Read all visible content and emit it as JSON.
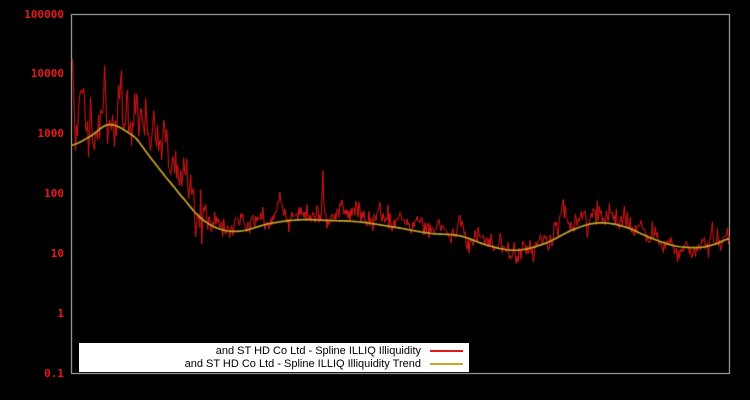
{
  "page": {
    "background": "#000000"
  },
  "axes": {
    "border_color": "#c2c2c2",
    "y": {
      "scale": "log",
      "min": 0.1,
      "max": 100000,
      "label_color": "#e51a1a",
      "tick_labels": [
        "100000",
        "10000",
        "1000",
        "100",
        "10",
        "1",
        "0.1"
      ],
      "tick_values": [
        100000,
        10000,
        1000,
        100,
        10,
        1,
        0.1
      ]
    },
    "x": {
      "tick_labels": []
    }
  },
  "legend": {
    "background": "#ffffff",
    "text_color": "#000000",
    "entries": [
      {
        "label": "and ST HD Co Ltd - Spline ILLIQ Illiquidity",
        "color": "#e01818"
      },
      {
        "label": "and ST HD Co Ltd - Spline ILLIQ Illiquidity Trend",
        "color": "#c9a42c"
      }
    ]
  },
  "chart_data": {
    "type": "line",
    "title": "",
    "xlabel": "",
    "ylabel": "",
    "y_scale": "log",
    "ylim": [
      0.1,
      100000
    ],
    "grid": false,
    "legend_position": "bottom-center",
    "series": [
      {
        "name": "and ST HD Co Ltd - Spline ILLIQ Illiquidity",
        "color": "#e01818",
        "style": "noisy-line",
        "line_width": 1,
        "samples": 658,
        "seed": 1337,
        "noise_sd_log10_early": 0.22,
        "noise_sd_log10_late": 0.09,
        "noise_transition_t": 0.2,
        "keypoints": [
          [
            0.0,
            12000
          ],
          [
            0.002,
            26000
          ],
          [
            0.006,
            900
          ],
          [
            0.012,
            2500
          ],
          [
            0.018,
            7000
          ],
          [
            0.023,
            1100
          ],
          [
            0.03,
            2000
          ],
          [
            0.038,
            700
          ],
          [
            0.044,
            1500
          ],
          [
            0.05,
            9000
          ],
          [
            0.055,
            1000
          ],
          [
            0.061,
            2200
          ],
          [
            0.067,
            800
          ],
          [
            0.073,
            10000
          ],
          [
            0.079,
            1400
          ],
          [
            0.085,
            4000
          ],
          [
            0.091,
            900
          ],
          [
            0.097,
            5500
          ],
          [
            0.103,
            1200
          ],
          [
            0.111,
            2500
          ],
          [
            0.119,
            600
          ],
          [
            0.126,
            1600
          ],
          [
            0.134,
            350
          ],
          [
            0.142,
            1400
          ],
          [
            0.149,
            300
          ],
          [
            0.157,
            500
          ],
          [
            0.164,
            130
          ],
          [
            0.172,
            320
          ],
          [
            0.18,
            90
          ],
          [
            0.187,
            60
          ],
          [
            0.195,
            46
          ],
          [
            0.202,
            70
          ],
          [
            0.21,
            30
          ],
          [
            0.218,
            45
          ],
          [
            0.225,
            24
          ],
          [
            0.233,
            38
          ],
          [
            0.24,
            22
          ],
          [
            0.256,
            35
          ],
          [
            0.271,
            28
          ],
          [
            0.286,
            45
          ],
          [
            0.301,
            34
          ],
          [
            0.317,
            65
          ],
          [
            0.324,
            40
          ],
          [
            0.332,
            34
          ],
          [
            0.347,
            46
          ],
          [
            0.362,
            38
          ],
          [
            0.374,
            50
          ],
          [
            0.379,
            48
          ],
          [
            0.382,
            260
          ],
          [
            0.384,
            45
          ],
          [
            0.388,
            38
          ],
          [
            0.4,
            45
          ],
          [
            0.411,
            72
          ],
          [
            0.423,
            30
          ],
          [
            0.432,
            75
          ],
          [
            0.441,
            40
          ],
          [
            0.454,
            34
          ],
          [
            0.469,
            52
          ],
          [
            0.484,
            30
          ],
          [
            0.499,
            44
          ],
          [
            0.514,
            27
          ],
          [
            0.53,
            36
          ],
          [
            0.545,
            24
          ],
          [
            0.56,
            32
          ],
          [
            0.575,
            19
          ],
          [
            0.59,
            28
          ],
          [
            0.606,
            16
          ],
          [
            0.621,
            23
          ],
          [
            0.636,
            13
          ],
          [
            0.651,
            17
          ],
          [
            0.667,
            10
          ],
          [
            0.677,
            8
          ],
          [
            0.689,
            14
          ],
          [
            0.7,
            11
          ],
          [
            0.712,
            18
          ],
          [
            0.724,
            14
          ],
          [
            0.737,
            24
          ],
          [
            0.75,
            52
          ],
          [
            0.761,
            28
          ],
          [
            0.773,
            44
          ],
          [
            0.785,
            33
          ],
          [
            0.796,
            58
          ],
          [
            0.807,
            38
          ],
          [
            0.819,
            50
          ],
          [
            0.831,
            30
          ],
          [
            0.842,
            44
          ],
          [
            0.852,
            24
          ],
          [
            0.864,
            34
          ],
          [
            0.877,
            17
          ],
          [
            0.887,
            24
          ],
          [
            0.898,
            12
          ],
          [
            0.91,
            17
          ],
          [
            0.922,
            10
          ],
          [
            0.933,
            15
          ],
          [
            0.944,
            11
          ],
          [
            0.956,
            15
          ],
          [
            0.966,
            12
          ],
          [
            0.977,
            22
          ],
          [
            0.986,
            14
          ],
          [
            0.994,
            24
          ],
          [
            1.0,
            17
          ]
        ]
      },
      {
        "name": "and ST HD Co Ltd - Spline ILLIQ Illiquidity Trend",
        "color": "#c9a42c",
        "style": "smooth-spline",
        "line_width": 1.7,
        "keypoints": [
          [
            0.0,
            650
          ],
          [
            0.027,
            900
          ],
          [
            0.058,
            1450
          ],
          [
            0.096,
            900
          ],
          [
            0.119,
            420
          ],
          [
            0.142,
            200
          ],
          [
            0.164,
            100
          ],
          [
            0.195,
            41
          ],
          [
            0.225,
            26
          ],
          [
            0.256,
            24
          ],
          [
            0.301,
            32
          ],
          [
            0.347,
            37
          ],
          [
            0.393,
            36
          ],
          [
            0.438,
            34
          ],
          [
            0.499,
            27
          ],
          [
            0.545,
            22
          ],
          [
            0.59,
            20
          ],
          [
            0.636,
            13.5
          ],
          [
            0.677,
            11.5
          ],
          [
            0.72,
            15
          ],
          [
            0.765,
            26
          ],
          [
            0.803,
            33
          ],
          [
            0.842,
            28
          ],
          [
            0.88,
            18.5
          ],
          [
            0.918,
            13.5
          ],
          [
            0.956,
            12.8
          ],
          [
            0.978,
            14.5
          ],
          [
            1.0,
            18
          ]
        ]
      }
    ]
  }
}
